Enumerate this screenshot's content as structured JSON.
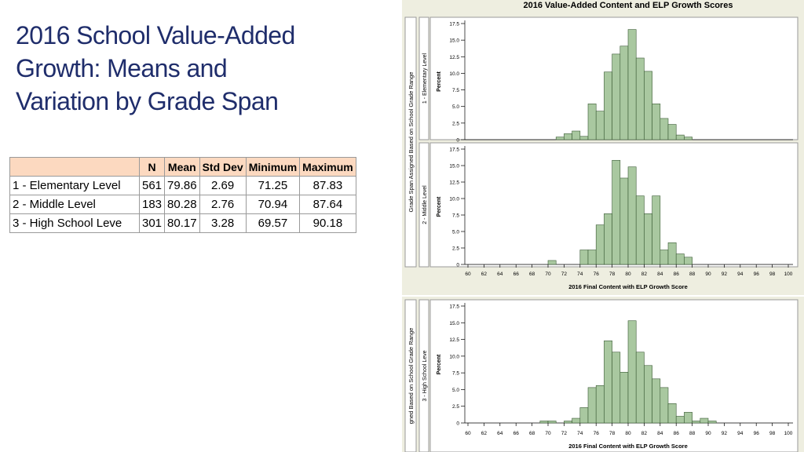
{
  "slide": {
    "title_lines": [
      "2016 School Value-Added",
      "Growth: Means and",
      "Variation by Grade Span"
    ]
  },
  "table": {
    "columns": [
      "N",
      "Mean",
      "Std Dev",
      "Minimum",
      "Maximum"
    ],
    "rows": [
      {
        "label": "1 - Elementary Level",
        "N": "561",
        "Mean": "79.86",
        "Std Dev": "2.69",
        "Minimum": "71.25",
        "Maximum": "87.83"
      },
      {
        "label": "2 - Middle Level",
        "N": "183",
        "Mean": "80.28",
        "Std Dev": "2.76",
        "Minimum": "70.94",
        "Maximum": "87.64"
      },
      {
        "label": "3 - High School Leve",
        "N": "301",
        "Mean": "80.17",
        "Std Dev": "3.28",
        "Minimum": "69.57",
        "Maximum": "90.18"
      }
    ]
  },
  "colors": {
    "bar_fill": "#a9c8a0",
    "bar_stroke": "#3a5a34",
    "title_color": "#1f2d6b",
    "header_bg": "#fcd9c0",
    "panel_bg": "#eeeee0"
  },
  "chart_data": {
    "type": "bar",
    "title": "2016 Value-Added Content and ELP Growth Scores",
    "xlabel": "2016 Final Content with ELP Growth Score",
    "ylabel": "Percent",
    "outer_label_top": "Grade Span Assigned Based on School Grade Range",
    "outer_label_bottom": "gned Based on School Grade Range",
    "xlim": [
      60,
      100
    ],
    "ylim": [
      0,
      17.5
    ],
    "xticks": [
      "60",
      "62",
      "64",
      "66",
      "68",
      "70",
      "72",
      "74",
      "76",
      "78",
      "80",
      "82",
      "84",
      "86",
      "88",
      "90",
      "92",
      "94",
      "96",
      "98",
      "100"
    ],
    "yticks": [
      "0",
      "2.5",
      "5.0",
      "7.5",
      "10.0",
      "12.5",
      "15.0",
      "17.5"
    ],
    "bin_width": 1,
    "panels": [
      {
        "name": "1 - Elementary Level",
        "bins": [
          {
            "x": 71,
            "y": 0.4
          },
          {
            "x": 72,
            "y": 0.9
          },
          {
            "x": 73,
            "y": 1.3
          },
          {
            "x": 74,
            "y": 0.5
          },
          {
            "x": 75,
            "y": 5.4
          },
          {
            "x": 76,
            "y": 4.3
          },
          {
            "x": 77,
            "y": 10.2
          },
          {
            "x": 78,
            "y": 12.9
          },
          {
            "x": 79,
            "y": 14.1
          },
          {
            "x": 80,
            "y": 16.6
          },
          {
            "x": 81,
            "y": 12.3
          },
          {
            "x": 82,
            "y": 10.3
          },
          {
            "x": 83,
            "y": 5.4
          },
          {
            "x": 84,
            "y": 3.2
          },
          {
            "x": 85,
            "y": 2.3
          },
          {
            "x": 86,
            "y": 0.7
          },
          {
            "x": 87,
            "y": 0.4
          }
        ]
      },
      {
        "name": "2 - Middle Level",
        "bins": [
          {
            "x": 70,
            "y": 0.6
          },
          {
            "x": 74,
            "y": 2.2
          },
          {
            "x": 75,
            "y": 2.2
          },
          {
            "x": 76,
            "y": 6.0
          },
          {
            "x": 77,
            "y": 7.7
          },
          {
            "x": 78,
            "y": 15.8
          },
          {
            "x": 79,
            "y": 13.1
          },
          {
            "x": 80,
            "y": 14.8
          },
          {
            "x": 81,
            "y": 10.4
          },
          {
            "x": 82,
            "y": 7.7
          },
          {
            "x": 83,
            "y": 10.4
          },
          {
            "x": 84,
            "y": 2.2
          },
          {
            "x": 85,
            "y": 3.3
          },
          {
            "x": 86,
            "y": 1.6
          },
          {
            "x": 87,
            "y": 1.1
          }
        ]
      },
      {
        "name": "3 - High School Leve",
        "bins": [
          {
            "x": 69,
            "y": 0.3
          },
          {
            "x": 70,
            "y": 0.3
          },
          {
            "x": 72,
            "y": 0.3
          },
          {
            "x": 73,
            "y": 0.7
          },
          {
            "x": 74,
            "y": 2.3
          },
          {
            "x": 75,
            "y": 5.3
          },
          {
            "x": 76,
            "y": 5.6
          },
          {
            "x": 77,
            "y": 12.3
          },
          {
            "x": 78,
            "y": 10.6
          },
          {
            "x": 79,
            "y": 7.6
          },
          {
            "x": 80,
            "y": 15.3
          },
          {
            "x": 81,
            "y": 10.6
          },
          {
            "x": 82,
            "y": 8.6
          },
          {
            "x": 83,
            "y": 6.6
          },
          {
            "x": 84,
            "y": 5.3
          },
          {
            "x": 85,
            "y": 2.9
          },
          {
            "x": 86,
            "y": 1.0
          },
          {
            "x": 87,
            "y": 1.6
          },
          {
            "x": 88,
            "y": 0.3
          },
          {
            "x": 89,
            "y": 0.7
          },
          {
            "x": 90,
            "y": 0.3
          }
        ]
      }
    ]
  }
}
